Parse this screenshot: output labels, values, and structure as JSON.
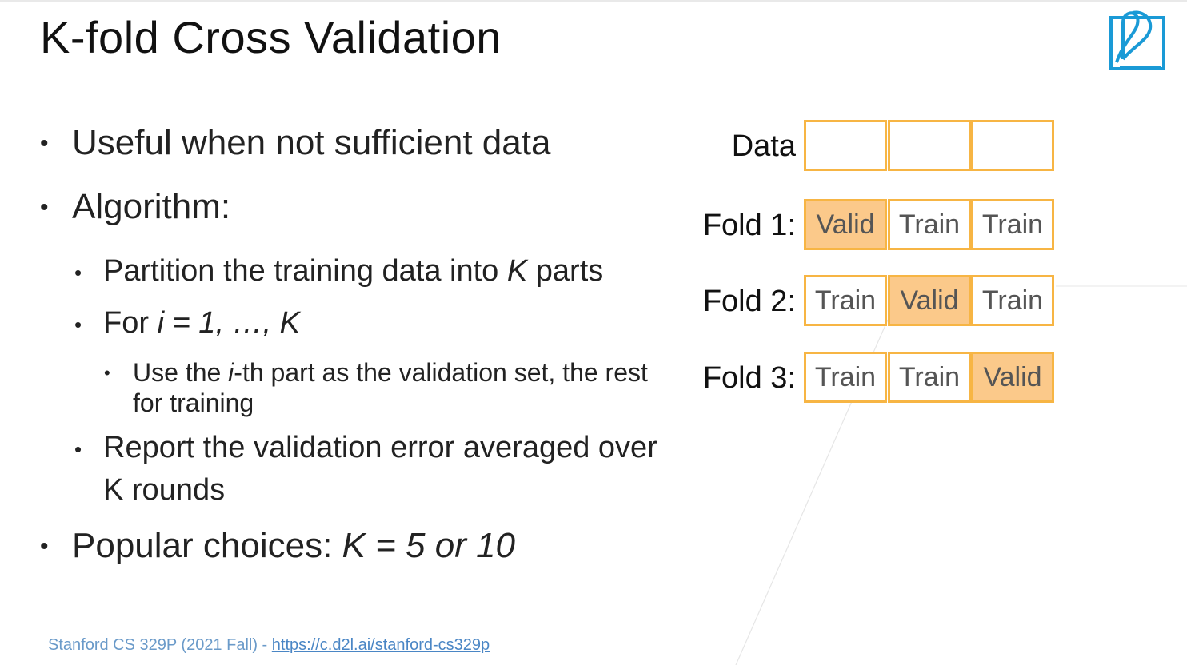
{
  "title": "K-fold Cross Validation",
  "bullets": {
    "b1": "Useful when not sufficient data",
    "b2": "Algorithm:",
    "b2a_pre": "Partition the training data into ",
    "b2a_k": "K",
    "b2a_post": " parts",
    "b2b_pre": "For ",
    "b2b_expr": "i = 1, …, K",
    "b2b1_pre": "Use the ",
    "b2b1_i": "i",
    "b2b1_post": "-th part as the validation set, the rest",
    "b2b1_line2": "for training",
    "b2c_line1": "Report the validation error averaged over",
    "b2c_line2": "K rounds",
    "b3_pre": "Popular choices: ",
    "b3_expr": "K = 5 or 10"
  },
  "diagram": {
    "rows": [
      {
        "label": "Data",
        "cells": [
          "",
          "",
          ""
        ],
        "valid_index": -1
      },
      {
        "label": "Fold 1:",
        "cells": [
          "Valid",
          "Train",
          "Train"
        ],
        "valid_index": 0
      },
      {
        "label": "Fold 2:",
        "cells": [
          "Train",
          "Valid",
          "Train"
        ],
        "valid_index": 1
      },
      {
        "label": "Fold 3:",
        "cells": [
          "Train",
          "Train",
          "Valid"
        ],
        "valid_index": 2
      }
    ],
    "border_color": "#f7b544",
    "valid_fill": "#fbc98a"
  },
  "footer": {
    "text": "Stanford CS 329P (2021 Fall) - ",
    "link": "https://c.d2l.ai/stanford-cs329p"
  },
  "logo_icon": "d2l-book-logo-icon"
}
